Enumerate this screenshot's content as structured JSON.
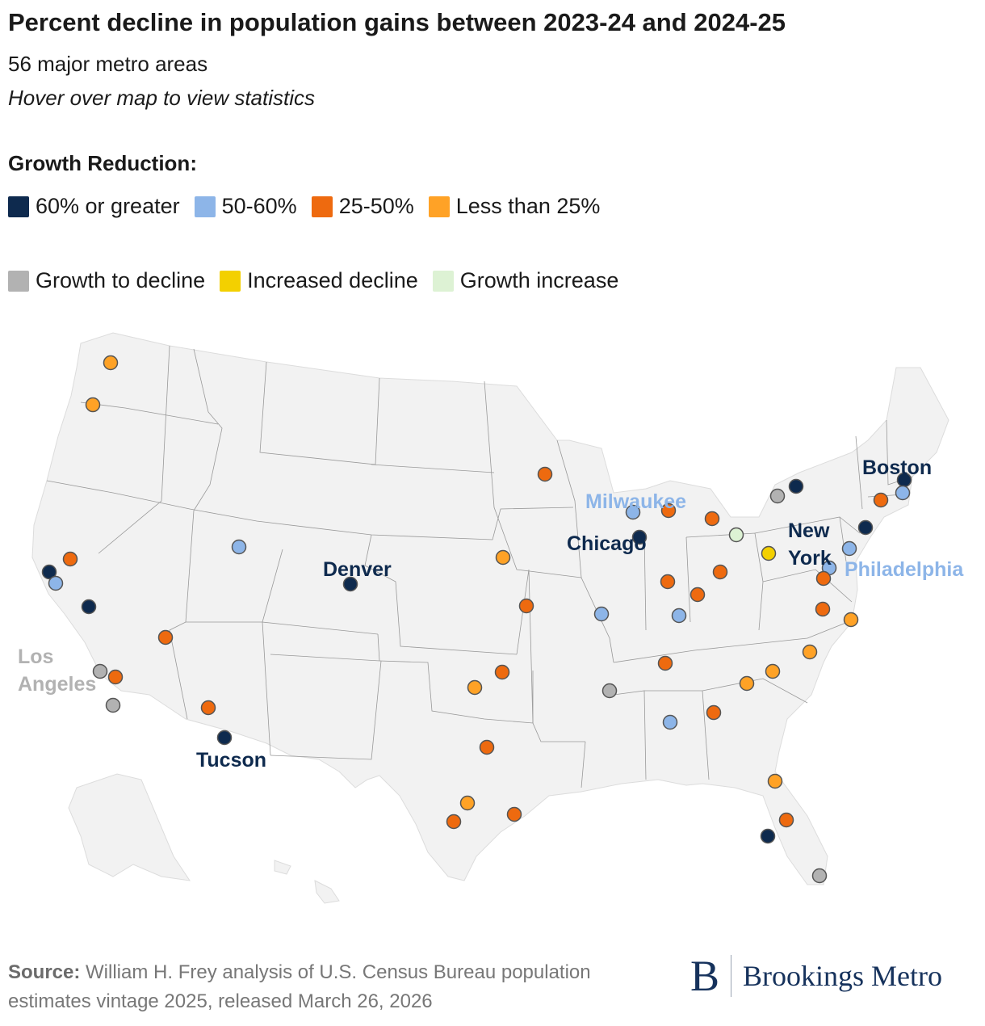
{
  "header": {
    "title": "Percent decline in population gains between 2023-24 and 2024-25",
    "subtitle": "56 major metro areas",
    "hint": "Hover over map to view statistics"
  },
  "legend": {
    "title": "Growth Reduction:",
    "row1": [
      {
        "label": "60% or greater",
        "color": "#0e2a4e"
      },
      {
        "label": "50-60%",
        "color": "#8db5e8"
      },
      {
        "label": "25-50%",
        "color": "#ee6a0f"
      },
      {
        "label": "Less than 25%",
        "color": "#ffa226"
      }
    ],
    "row2": [
      {
        "label": "Growth to decline",
        "color": "#b2b2b2"
      },
      {
        "label": "Increased decline",
        "color": "#f3d000"
      },
      {
        "label": "Growth increase",
        "color": "#ddf2d4"
      }
    ]
  },
  "map": {
    "city_labels": [
      {
        "text": "Boston",
        "color": "#0e2a4e"
      },
      {
        "text": "Milwaukee",
        "color": "#8db5e8"
      },
      {
        "text": "Chicago",
        "color": "#0e2a4e"
      },
      {
        "text": "New",
        "color": "#0e2a4e"
      },
      {
        "text": "York",
        "color": "#0e2a4e"
      },
      {
        "text": "Philadelphia",
        "color": "#8db5e8"
      },
      {
        "text": "Denver",
        "color": "#0e2a4e"
      },
      {
        "text": "Los",
        "color": "#b2b2b2"
      },
      {
        "text": "Angeles",
        "color": "#b2b2b2"
      },
      {
        "text": "Tucson",
        "color": "#0e2a4e"
      }
    ]
  },
  "footer": {
    "source_label": "Source:",
    "source_text": "William H. Frey analysis of U.S. Census Bureau population estimates vintage 2025, released March 26, 2026",
    "brand_letter": "B",
    "brand_name": "Brookings Metro"
  }
}
